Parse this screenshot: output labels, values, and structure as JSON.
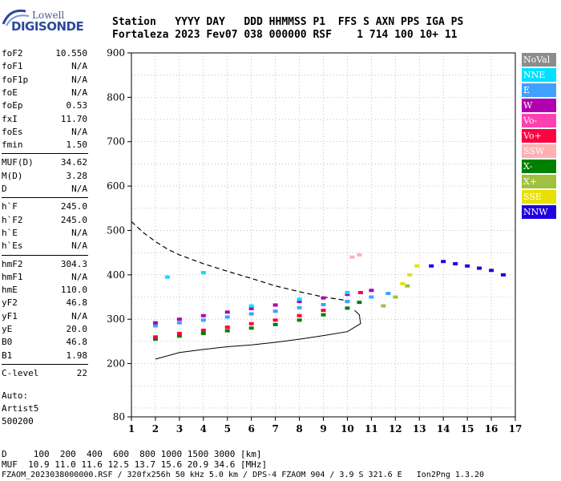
{
  "logo": {
    "line1": "Lowell",
    "line2": "DIGISONDE"
  },
  "header": {
    "line1": "Station   YYYY DAY   DDD HHMMSS P1  FFS S AXN PPS IGA PS",
    "line2": "Fortaleza 2023 Fev07 038 000000 RSF    1 714 100 10+ 11"
  },
  "params": [
    {
      "k": "foF2",
      "v": "10.550"
    },
    {
      "k": "foF1",
      "v": "N/A"
    },
    {
      "k": "foF1p",
      "v": "N/A"
    },
    {
      "k": "foE",
      "v": "N/A"
    },
    {
      "k": "foEp",
      "v": "0.53"
    },
    {
      "k": "fxI",
      "v": "11.70"
    },
    {
      "k": "foEs",
      "v": "N/A"
    },
    {
      "k": "fmin",
      "v": "1.50"
    },
    {
      "k": "MUF(D)",
      "v": "34.62"
    },
    {
      "k": "M(D)",
      "v": "3.28"
    },
    {
      "k": "D",
      "v": "N/A"
    },
    {
      "k": "h`F",
      "v": "245.0"
    },
    {
      "k": "h`F2",
      "v": "245.0"
    },
    {
      "k": "h`E",
      "v": "N/A"
    },
    {
      "k": "h`Es",
      "v": "N/A"
    },
    {
      "k": "hmF2",
      "v": "304.3"
    },
    {
      "k": "hmF1",
      "v": "N/A"
    },
    {
      "k": "hmE",
      "v": "110.0"
    },
    {
      "k": "yF2",
      "v": "46.8"
    },
    {
      "k": "yF1",
      "v": "N/A"
    },
    {
      "k": "yE",
      "v": "20.0"
    },
    {
      "k": "B0",
      "v": "46.8"
    },
    {
      "k": "B1",
      "v": "1.98"
    },
    {
      "k": "C-level",
      "v": "22"
    }
  ],
  "auto": [
    "Auto:",
    "Artist5",
    "500200"
  ],
  "legend": [
    {
      "label": "NoVal",
      "color": "#8c8c8c"
    },
    {
      "label": "NNE",
      "color": "#00e0ff"
    },
    {
      "label": "E",
      "color": "#40a0ff"
    },
    {
      "label": "W",
      "color": "#b000b0"
    },
    {
      "label": "Vo-",
      "color": "#ff40b0"
    },
    {
      "label": "Vo+",
      "color": "#ff0040"
    },
    {
      "label": "SSW",
      "color": "#ffb0b0"
    },
    {
      "label": "X-",
      "color": "#008000"
    },
    {
      "label": "X+",
      "color": "#a0c040"
    },
    {
      "label": "SSE",
      "color": "#e8e000"
    },
    {
      "label": "NNW",
      "color": "#2000e0"
    }
  ],
  "footer": {
    "line1": "D     100  200  400  600  800 1000 1500 3000 [km]",
    "line2": "MUF  10.9 11.0 11.6 12.5 13.7 15.6 20.9 34.6 [MHz]",
    "line3": "FZAOM_2023038000000.RSF / 320fx256h 50 kHz 5.0 km / DPS-4 FZAOM 904 / 3.9 S 321.6 E   Ion2Png 1.3.20"
  },
  "chart_data": {
    "type": "scatter",
    "xlim": [
      1,
      17
    ],
    "ylim": [
      80,
      900
    ],
    "xticks": [
      1,
      2,
      3,
      4,
      5,
      6,
      7,
      8,
      9,
      10,
      11,
      12,
      13,
      14,
      15,
      16,
      17
    ],
    "yticks": [
      80,
      200,
      300,
      400,
      500,
      600,
      700,
      800,
      900
    ],
    "grid": true,
    "series": [
      {
        "name": "X-",
        "x": [
          2.0,
          3.0,
          4.0,
          5.0,
          6.0,
          7.0,
          8.0,
          9.0,
          10.0,
          10.5
        ],
        "y": [
          255,
          262,
          268,
          274,
          280,
          288,
          298,
          310,
          325,
          338
        ]
      },
      {
        "name": "Vo+",
        "x": [
          2.0,
          3.0,
          4.0,
          5.0,
          6.0,
          7.0,
          8.0,
          9.0,
          10.0,
          10.55
        ],
        "y": [
          260,
          268,
          275,
          282,
          290,
          298,
          308,
          320,
          340,
          360
        ]
      },
      {
        "name": "E",
        "x": [
          2.0,
          3.0,
          4.0,
          5.0,
          6.0,
          7.0,
          8.0,
          9.0,
          10.0,
          11.0,
          11.7
        ],
        "y": [
          285,
          292,
          298,
          305,
          312,
          318,
          326,
          333,
          340,
          350,
          358
        ]
      },
      {
        "name": "W",
        "x": [
          2.0,
          3.0,
          4.0,
          5.0,
          6.0,
          7.0,
          8.0,
          9.0,
          10.0,
          11.0
        ],
        "y": [
          292,
          300,
          308,
          316,
          324,
          332,
          340,
          348,
          356,
          365
        ]
      },
      {
        "name": "NNE",
        "x": [
          2.5,
          4.0,
          6.0,
          8.0,
          10.0
        ],
        "y": [
          395,
          405,
          330,
          345,
          360
        ]
      },
      {
        "name": "SSW",
        "x": [
          10.2,
          10.5
        ],
        "y": [
          440,
          445
        ]
      },
      {
        "name": "X+",
        "x": [
          11.5,
          12.0,
          12.5
        ],
        "y": [
          330,
          350,
          375
        ]
      },
      {
        "name": "SSE",
        "x": [
          12.3,
          12.6,
          12.9
        ],
        "y": [
          380,
          400,
          420
        ]
      },
      {
        "name": "NNW",
        "x": [
          13.5,
          14.0,
          14.5,
          15.0,
          15.5,
          16.0,
          16.5
        ],
        "y": [
          420,
          430,
          425,
          420,
          415,
          410,
          400
        ]
      }
    ],
    "profile_line": {
      "x": [
        2.0,
        3.0,
        4.0,
        5.0,
        6.0,
        7.0,
        8.0,
        9.0,
        10.0,
        10.55,
        10.5,
        10.3
      ],
      "y": [
        210,
        225,
        232,
        238,
        242,
        248,
        255,
        263,
        272,
        290,
        310,
        320
      ]
    },
    "muf_line": {
      "x": [
        1.0,
        1.5,
        2.0,
        2.5,
        3.0,
        4.0,
        5.0,
        6.0,
        7.0,
        8.0,
        9.0,
        10.0
      ],
      "y": [
        520,
        495,
        475,
        458,
        445,
        425,
        408,
        392,
        375,
        362,
        350,
        342
      ]
    }
  }
}
